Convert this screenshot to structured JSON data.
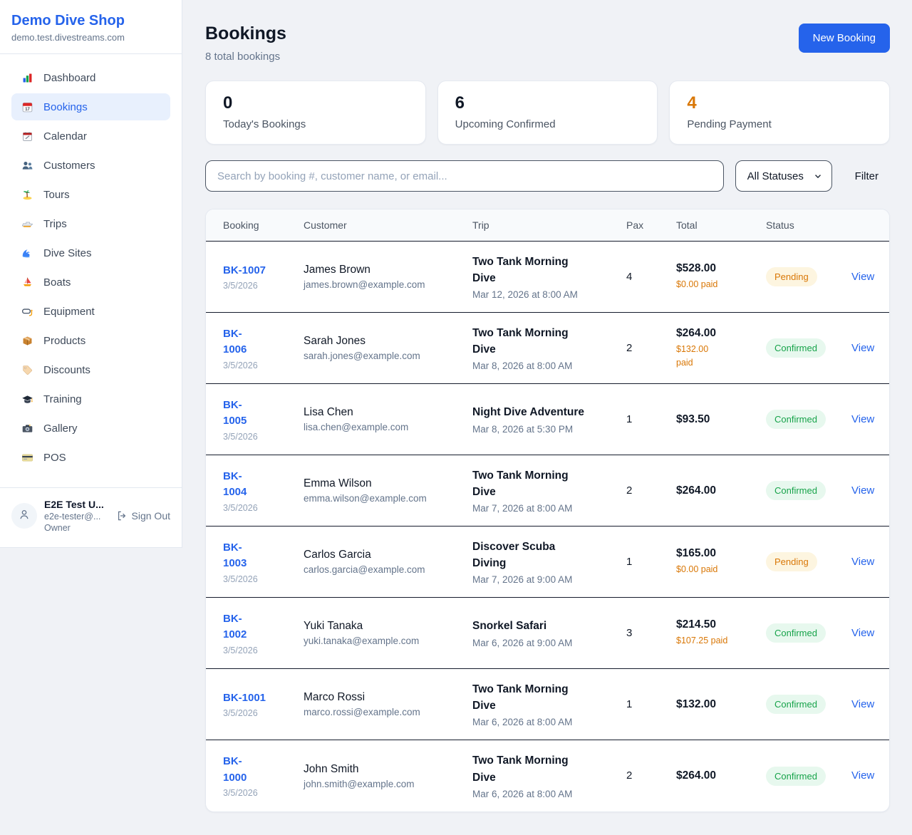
{
  "brand": {
    "name": "Demo Dive Shop",
    "domain": "demo.test.divestreams.com"
  },
  "colors": {
    "accent_blue": "#2563eb",
    "pending_orange": "#d97706",
    "confirmed_green": "#17a34a"
  },
  "sidebar": {
    "items": [
      {
        "slug": "dashboard",
        "icon": "bar-chart",
        "label": "Dashboard",
        "active": false
      },
      {
        "slug": "bookings",
        "icon": "calendar",
        "label": "Bookings",
        "active": true
      },
      {
        "slug": "calendar",
        "icon": "spiral-calendar",
        "label": "Calendar",
        "active": false
      },
      {
        "slug": "customers",
        "icon": "people",
        "label": "Customers",
        "active": false
      },
      {
        "slug": "tours",
        "icon": "island",
        "label": "Tours",
        "active": false
      },
      {
        "slug": "trips",
        "icon": "speedboat",
        "label": "Trips",
        "active": false
      },
      {
        "slug": "dive-sites",
        "icon": "wave",
        "label": "Dive Sites",
        "active": false
      },
      {
        "slug": "boats",
        "icon": "sailboat",
        "label": "Boats",
        "active": false
      },
      {
        "slug": "equipment",
        "icon": "diving-mask",
        "label": "Equipment",
        "active": false
      },
      {
        "slug": "products",
        "icon": "package",
        "label": "Products",
        "active": false
      },
      {
        "slug": "discounts",
        "icon": "tag",
        "label": "Discounts",
        "active": false
      },
      {
        "slug": "training",
        "icon": "graduation-cap",
        "label": "Training",
        "active": false
      },
      {
        "slug": "gallery",
        "icon": "camera",
        "label": "Gallery",
        "active": false
      },
      {
        "slug": "pos",
        "icon": "credit-card",
        "label": "POS",
        "active": false
      }
    ],
    "user": {
      "name": "E2E Test U...",
      "email": "e2e-tester@...",
      "role": "Owner",
      "signout_label": "Sign Out"
    }
  },
  "header": {
    "title": "Bookings",
    "subtitle": "8 total bookings",
    "new_booking_label": "New Booking"
  },
  "stats": [
    {
      "value": "0",
      "label": "Today's Bookings",
      "accent": false
    },
    {
      "value": "6",
      "label": "Upcoming Confirmed",
      "accent": false
    },
    {
      "value": "4",
      "label": "Pending Payment",
      "accent": true
    }
  ],
  "filters": {
    "search_placeholder": "Search by booking #, customer name, or email...",
    "status_selected": "All Statuses",
    "filter_label": "Filter"
  },
  "table": {
    "columns": [
      "Booking",
      "Customer",
      "Trip",
      "Pax",
      "Total",
      "Status"
    ],
    "rows": [
      {
        "id": "BK-1007",
        "id_wrap": false,
        "date": "3/5/2026",
        "customer": "James Brown",
        "email": "james.brown@example.com",
        "trip": "Two Tank Morning Dive",
        "trip_time": "Mar 12, 2026 at 8:00 AM",
        "pax": "4",
        "total": "$528.00",
        "paid": "$0.00 paid",
        "paid_wrap": false,
        "status": "Pending",
        "action": "View"
      },
      {
        "id": "BK-1006",
        "id_wrap": true,
        "date": "3/5/2026",
        "customer": "Sarah Jones",
        "email": "sarah.jones@example.com",
        "trip": "Two Tank Morning Dive",
        "trip_time": "Mar 8, 2026 at 8:00 AM",
        "pax": "2",
        "total": "$264.00",
        "paid": "$132.00 paid",
        "paid_wrap": true,
        "status": "Confirmed",
        "action": "View"
      },
      {
        "id": "BK-1005",
        "id_wrap": true,
        "date": "3/5/2026",
        "customer": "Lisa Chen",
        "email": "lisa.chen@example.com",
        "trip": "Night Dive Adventure",
        "trip_time": "Mar 8, 2026 at 5:30 PM",
        "pax": "1",
        "total": "$93.50",
        "paid": "",
        "paid_wrap": false,
        "status": "Confirmed",
        "action": "View"
      },
      {
        "id": "BK-1004",
        "id_wrap": true,
        "date": "3/5/2026",
        "customer": "Emma Wilson",
        "email": "emma.wilson@example.com",
        "trip": "Two Tank Morning Dive",
        "trip_time": "Mar 7, 2026 at 8:00 AM",
        "pax": "2",
        "total": "$264.00",
        "paid": "",
        "paid_wrap": false,
        "status": "Confirmed",
        "action": "View"
      },
      {
        "id": "BK-1003",
        "id_wrap": true,
        "date": "3/5/2026",
        "customer": "Carlos Garcia",
        "email": "carlos.garcia@example.com",
        "trip": "Discover Scuba Diving",
        "trip_time": "Mar 7, 2026 at 9:00 AM",
        "pax": "1",
        "total": "$165.00",
        "paid": "$0.00 paid",
        "paid_wrap": false,
        "status": "Pending",
        "action": "View"
      },
      {
        "id": "BK-1002",
        "id_wrap": true,
        "date": "3/5/2026",
        "customer": "Yuki Tanaka",
        "email": "yuki.tanaka@example.com",
        "trip": "Snorkel Safari",
        "trip_time": "Mar 6, 2026 at 9:00 AM",
        "pax": "3",
        "total": "$214.50",
        "paid": "$107.25 paid",
        "paid_wrap": false,
        "status": "Confirmed",
        "action": "View"
      },
      {
        "id": "BK-1001",
        "id_wrap": false,
        "date": "3/5/2026",
        "customer": "Marco Rossi",
        "email": "marco.rossi@example.com",
        "trip": "Two Tank Morning Dive",
        "trip_time": "Mar 6, 2026 at 8:00 AM",
        "pax": "1",
        "total": "$132.00",
        "paid": "",
        "paid_wrap": false,
        "status": "Confirmed",
        "action": "View"
      },
      {
        "id": "BK-1000",
        "id_wrap": true,
        "date": "3/5/2026",
        "customer": "John Smith",
        "email": "john.smith@example.com",
        "trip": "Two Tank Morning Dive",
        "trip_time": "Mar 6, 2026 at 8:00 AM",
        "pax": "2",
        "total": "$264.00",
        "paid": "",
        "paid_wrap": false,
        "status": "Confirmed",
        "action": "View"
      }
    ]
  }
}
